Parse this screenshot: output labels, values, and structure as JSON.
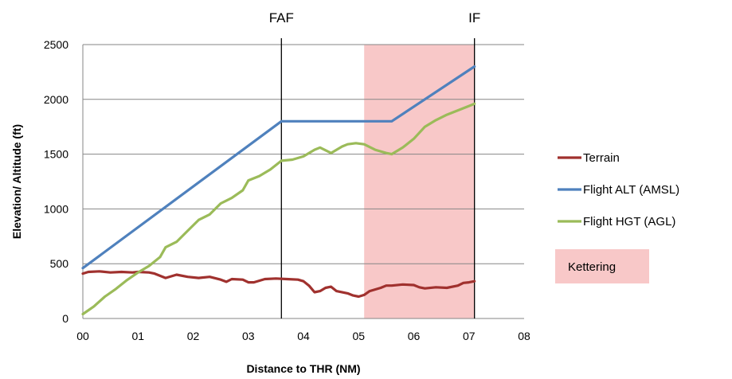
{
  "chart_data": {
    "type": "line",
    "title": "",
    "xlabel": "Distance to THR (NM)",
    "ylabel": "Elevation/ Altitude (ft)",
    "xlim": [
      0,
      8
    ],
    "ylim": [
      0,
      2500
    ],
    "x_ticks": [
      0,
      1,
      2,
      3,
      4,
      5,
      6,
      7,
      8
    ],
    "x_tick_labels": [
      "00",
      "01",
      "02",
      "03",
      "04",
      "05",
      "06",
      "07",
      "08"
    ],
    "y_ticks": [
      0,
      500,
      1000,
      1500,
      2000,
      2500
    ],
    "y_tick_labels": [
      "0",
      "500",
      "1000",
      "1500",
      "2000",
      "2500"
    ],
    "grid": "horizontal",
    "legend_position": "right",
    "vertical_markers": [
      {
        "label": "FAF",
        "x": 3.6
      },
      {
        "label": "IF",
        "x": 7.1
      }
    ],
    "shaded_region": {
      "label": "Kettering",
      "x_start": 5.1,
      "x_end": 7.1,
      "color": "#f8c8c8"
    },
    "series": [
      {
        "name": "Terrain",
        "color": "#a0312e",
        "points": [
          [
            0.0,
            410
          ],
          [
            0.1,
            425
          ],
          [
            0.3,
            430
          ],
          [
            0.5,
            420
          ],
          [
            0.7,
            425
          ],
          [
            0.9,
            420
          ],
          [
            1.0,
            425
          ],
          [
            1.2,
            420
          ],
          [
            1.3,
            410
          ],
          [
            1.5,
            370
          ],
          [
            1.7,
            400
          ],
          [
            1.9,
            380
          ],
          [
            2.1,
            370
          ],
          [
            2.3,
            380
          ],
          [
            2.5,
            355
          ],
          [
            2.6,
            335
          ],
          [
            2.7,
            360
          ],
          [
            2.9,
            355
          ],
          [
            3.0,
            330
          ],
          [
            3.1,
            330
          ],
          [
            3.3,
            360
          ],
          [
            3.5,
            365
          ],
          [
            3.7,
            360
          ],
          [
            3.9,
            355
          ],
          [
            4.0,
            340
          ],
          [
            4.1,
            300
          ],
          [
            4.2,
            240
          ],
          [
            4.3,
            250
          ],
          [
            4.4,
            280
          ],
          [
            4.5,
            290
          ],
          [
            4.6,
            250
          ],
          [
            4.8,
            230
          ],
          [
            4.9,
            210
          ],
          [
            5.0,
            200
          ],
          [
            5.1,
            215
          ],
          [
            5.2,
            250
          ],
          [
            5.4,
            280
          ],
          [
            5.5,
            300
          ],
          [
            5.6,
            300
          ],
          [
            5.8,
            310
          ],
          [
            6.0,
            305
          ],
          [
            6.1,
            285
          ],
          [
            6.2,
            275
          ],
          [
            6.4,
            285
          ],
          [
            6.6,
            280
          ],
          [
            6.8,
            300
          ],
          [
            6.9,
            325
          ],
          [
            7.0,
            330
          ],
          [
            7.1,
            340
          ]
        ]
      },
      {
        "name": "Flight ALT (AMSL)",
        "color": "#4f81bd",
        "points": [
          [
            0.0,
            460
          ],
          [
            3.6,
            1800
          ],
          [
            5.6,
            1800
          ],
          [
            7.1,
            2300
          ]
        ]
      },
      {
        "name": "Flight HGT (AGL)",
        "color": "#9bbb59",
        "points": [
          [
            0.0,
            40
          ],
          [
            0.2,
            110
          ],
          [
            0.4,
            200
          ],
          [
            0.6,
            270
          ],
          [
            0.8,
            350
          ],
          [
            1.0,
            420
          ],
          [
            1.2,
            480
          ],
          [
            1.4,
            560
          ],
          [
            1.5,
            650
          ],
          [
            1.7,
            700
          ],
          [
            1.9,
            800
          ],
          [
            2.1,
            900
          ],
          [
            2.3,
            950
          ],
          [
            2.5,
            1050
          ],
          [
            2.7,
            1100
          ],
          [
            2.9,
            1170
          ],
          [
            3.0,
            1260
          ],
          [
            3.2,
            1300
          ],
          [
            3.4,
            1360
          ],
          [
            3.6,
            1440
          ],
          [
            3.8,
            1450
          ],
          [
            4.0,
            1480
          ],
          [
            4.2,
            1540
          ],
          [
            4.3,
            1560
          ],
          [
            4.5,
            1510
          ],
          [
            4.7,
            1570
          ],
          [
            4.8,
            1590
          ],
          [
            4.95,
            1600
          ],
          [
            5.1,
            1590
          ],
          [
            5.3,
            1540
          ],
          [
            5.5,
            1510
          ],
          [
            5.6,
            1500
          ],
          [
            5.8,
            1560
          ],
          [
            6.0,
            1640
          ],
          [
            6.2,
            1750
          ],
          [
            6.4,
            1810
          ],
          [
            6.6,
            1860
          ],
          [
            6.8,
            1900
          ],
          [
            7.0,
            1940
          ],
          [
            7.1,
            1960
          ]
        ]
      }
    ]
  }
}
